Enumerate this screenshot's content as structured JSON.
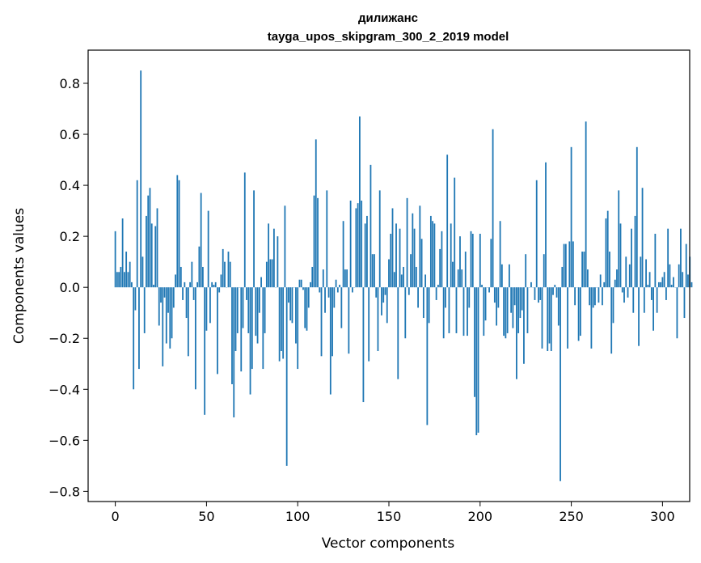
{
  "chart_data": {
    "type": "bar",
    "title": "дилижанс",
    "subtitle": "tayga_upos_skipgram_300_2_2019 model",
    "xlabel": "Vector components",
    "ylabel": "Components values",
    "xlim": [
      -14.9,
      314.9
    ],
    "ylim": [
      -0.84,
      0.93
    ],
    "xticks": [
      0,
      50,
      100,
      150,
      200,
      250,
      300
    ],
    "yticks": [
      -0.8,
      -0.6,
      -0.4,
      -0.2,
      0.0,
      0.2,
      0.4,
      0.6,
      0.8
    ],
    "ytick_labels": [
      "−0.8",
      "−0.6",
      "−0.4",
      "−0.2",
      "0.0",
      "0.2",
      "0.4",
      "0.6",
      "0.8"
    ],
    "grid": false,
    "bar_color": "#1f77b4",
    "values": [
      0.22,
      0.06,
      0.06,
      0.08,
      0.27,
      0.06,
      0.14,
      0.06,
      0.1,
      0.02,
      -0.4,
      -0.09,
      0.42,
      -0.32,
      0.85,
      0.12,
      -0.18,
      0.28,
      0.36,
      0.39,
      0.25,
      0.01,
      0.24,
      0.31,
      -0.15,
      -0.06,
      -0.31,
      -0.04,
      -0.22,
      -0.1,
      -0.24,
      -0.2,
      -0.08,
      0.05,
      0.44,
      0.42,
      0.08,
      -0.05,
      0.02,
      -0.12,
      -0.27,
      0.02,
      0.1,
      -0.05,
      -0.4,
      0.02,
      0.16,
      0.37,
      0.08,
      -0.5,
      -0.17,
      0.3,
      -0.14,
      0.02,
      0.01,
      0.02,
      -0.34,
      -0.02,
      0.05,
      0.15,
      0.1,
      0.0,
      0.14,
      0.1,
      -0.38,
      -0.51,
      -0.25,
      -0.18,
      0.0,
      -0.33,
      -0.16,
      0.45,
      -0.05,
      -0.18,
      -0.42,
      -0.32,
      0.38,
      -0.19,
      -0.22,
      -0.1,
      0.04,
      -0.32,
      -0.18,
      0.1,
      0.25,
      0.11,
      0.11,
      0.23,
      0.0,
      0.2,
      -0.29,
      -0.25,
      -0.28,
      0.32,
      -0.7,
      -0.06,
      -0.13,
      -0.14,
      0.0,
      -0.22,
      -0.32,
      0.03,
      0.03,
      -0.01,
      -0.16,
      -0.17,
      -0.08,
      0.02,
      0.08,
      0.36,
      0.58,
      0.35,
      -0.02,
      -0.27,
      0.07,
      -0.1,
      0.38,
      -0.04,
      -0.42,
      -0.27,
      -0.08,
      0.03,
      -0.02,
      0.01,
      -0.16,
      0.26,
      0.07,
      0.07,
      -0.26,
      0.34,
      -0.02,
      0.0,
      0.31,
      0.33,
      0.67,
      0.34,
      -0.45,
      0.25,
      0.28,
      -0.29,
      0.48,
      0.13,
      0.13,
      -0.04,
      -0.25,
      0.38,
      -0.11,
      -0.06,
      -0.03,
      -0.14,
      0.11,
      0.21,
      0.31,
      0.06,
      0.25,
      -0.36,
      0.23,
      0.05,
      0.08,
      -0.2,
      0.35,
      -0.03,
      0.13,
      0.29,
      0.23,
      0.08,
      -0.08,
      0.32,
      0.19,
      -0.12,
      0.05,
      -0.54,
      -0.14,
      0.28,
      0.26,
      0.25,
      -0.05,
      0.01,
      0.15,
      0.22,
      -0.2,
      -0.08,
      0.52,
      -0.18,
      0.25,
      0.1,
      0.43,
      -0.18,
      0.07,
      0.2,
      0.07,
      -0.19,
      0.14,
      -0.19,
      -0.08,
      0.22,
      0.21,
      -0.43,
      -0.58,
      -0.57,
      0.21,
      0.01,
      -0.19,
      -0.13,
      0.0,
      -0.02,
      0.19,
      0.62,
      -0.06,
      -0.15,
      -0.08,
      0.26,
      0.09,
      -0.19,
      -0.2,
      -0.18,
      0.09,
      -0.1,
      -0.16,
      -0.07,
      -0.36,
      -0.18,
      -0.12,
      -0.09,
      -0.3,
      0.13,
      -0.18,
      0.0,
      0.02,
      0.0,
      -0.05,
      0.42,
      -0.06,
      -0.05,
      -0.24,
      0.13,
      0.49,
      -0.25,
      -0.22,
      -0.25,
      -0.03,
      0.01,
      -0.04,
      -0.15,
      -0.76,
      0.08,
      0.17,
      0.17,
      -0.24,
      0.18,
      0.55,
      0.18,
      -0.07,
      0.0,
      -0.21,
      -0.19,
      0.14,
      0.14,
      0.65,
      0.07,
      -0.07,
      -0.24,
      -0.08,
      -0.07,
      0.0,
      -0.06,
      0.05,
      -0.07,
      0.02,
      0.27,
      0.3,
      0.14,
      -0.26,
      -0.14,
      0.03,
      0.07,
      0.38,
      0.25,
      -0.02,
      -0.06,
      0.12,
      -0.04,
      0.09,
      0.23,
      -0.1,
      0.28,
      0.55,
      -0.23,
      0.12,
      0.39,
      -0.1,
      0.11,
      0.01,
      0.06,
      -0.05,
      -0.17,
      0.21,
      -0.1,
      0.02,
      0.02,
      0.04,
      0.06,
      -0.05,
      0.23,
      0.09,
      0.01,
      0.04,
      0.0,
      -0.2,
      0.09,
      0.23,
      0.06,
      -0.12,
      0.17,
      0.05,
      0.12,
      0.02
    ]
  }
}
